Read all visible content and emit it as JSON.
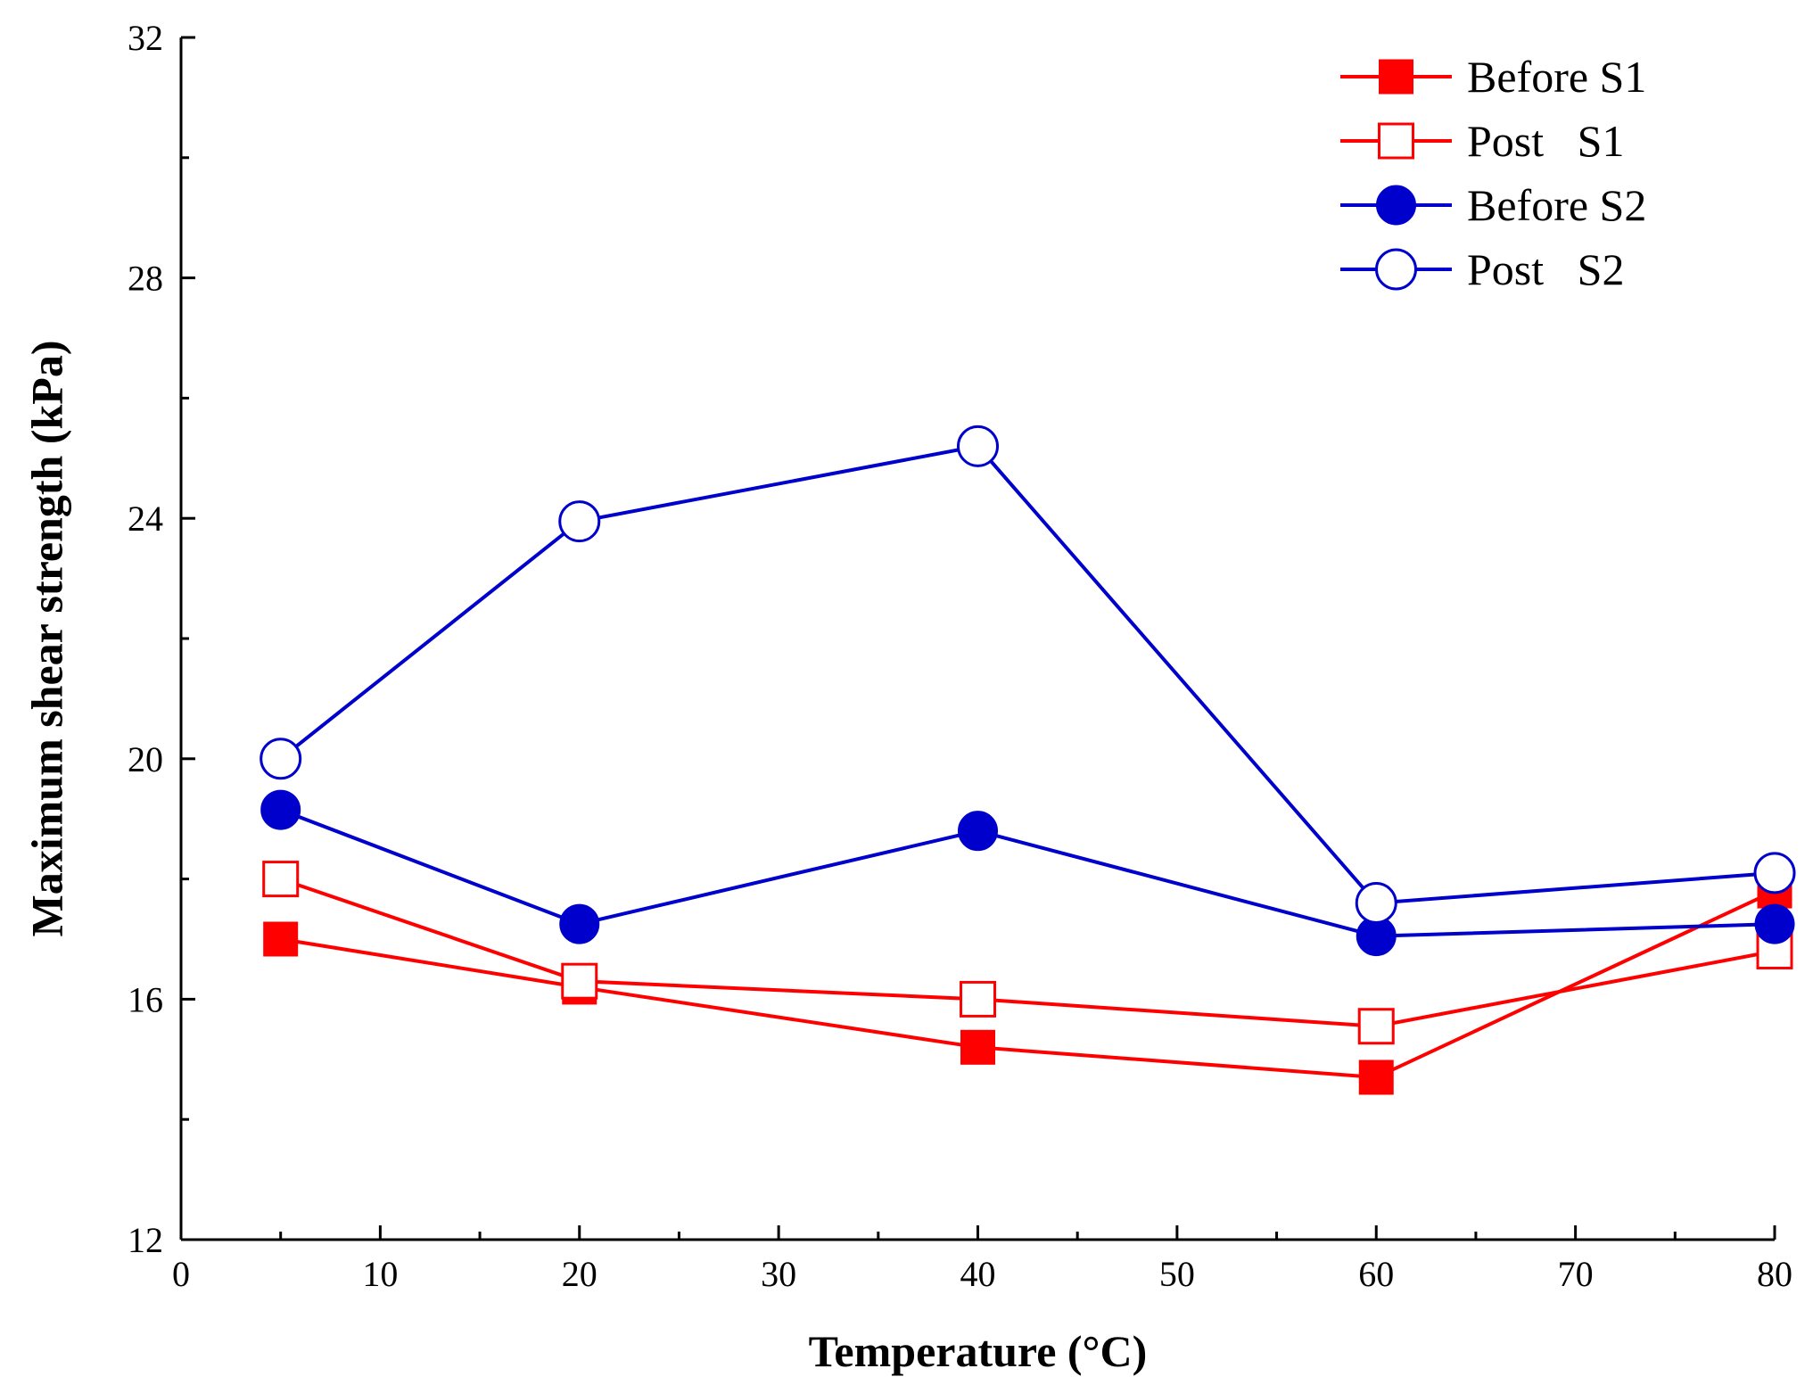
{
  "chart_data": {
    "type": "line",
    "title": "",
    "xlabel": "Temperature (°C)",
    "ylabel": "Maximum shear strength (kPa)",
    "xlim": [
      0,
      80
    ],
    "ylim": [
      12,
      32
    ],
    "xticks": [
      0,
      10,
      20,
      30,
      40,
      50,
      60,
      70,
      80
    ],
    "xtick_labels": [
      "0",
      "10",
      "20",
      "30",
      "40",
      "50",
      "60",
      "70",
      "80"
    ],
    "yticks": [
      12,
      16,
      20,
      24,
      28,
      32
    ],
    "ytick_labels": [
      "12",
      "16",
      "20",
      "24",
      "28",
      "32"
    ],
    "grid": false,
    "legend_position": "top-right",
    "x": [
      5,
      20,
      40,
      60,
      80
    ],
    "series": [
      {
        "name": "Before S1",
        "label": "Before S1",
        "color": "#ff0000",
        "marker": "square-filled",
        "values": [
          17.0,
          16.2,
          15.2,
          14.7,
          17.8
        ]
      },
      {
        "name": "Post S1",
        "label": "Post   S1",
        "color": "#ff0000",
        "marker": "square-open",
        "values": [
          18.0,
          16.3,
          16.0,
          15.55,
          16.8
        ]
      },
      {
        "name": "Before S2",
        "label": "Before S2",
        "color": "#0000cc",
        "marker": "circle-filled",
        "values": [
          19.15,
          17.25,
          18.8,
          17.05,
          17.25
        ]
      },
      {
        "name": "Post S2",
        "label": "Post   S2",
        "color": "#0000cc",
        "marker": "circle-open",
        "values": [
          20.0,
          23.95,
          25.2,
          17.6,
          18.1
        ]
      }
    ]
  }
}
